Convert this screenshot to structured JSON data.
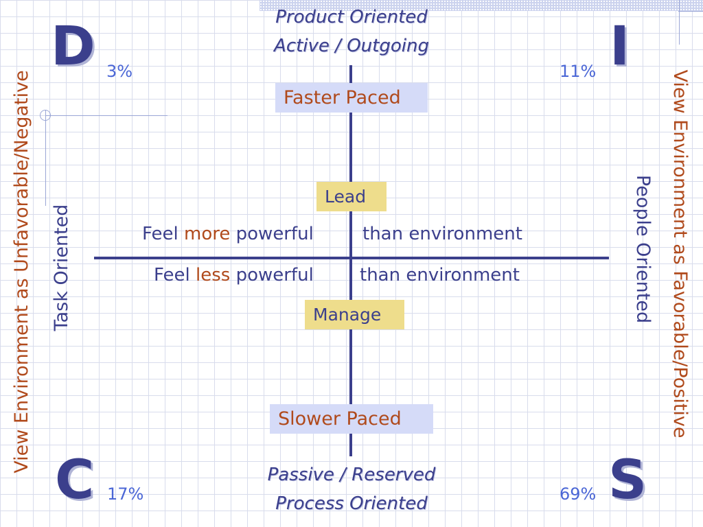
{
  "headings": {
    "top_line1": "Product Oriented",
    "top_line2": "Active / Outgoing",
    "bottom_line1": "Passive / Reserved",
    "bottom_line2": "Process Oriented"
  },
  "quadrants": {
    "D": {
      "letter": "D",
      "percent": "3%"
    },
    "I": {
      "letter": "I",
      "percent": "11%"
    },
    "C": {
      "letter": "C",
      "percent": "17%"
    },
    "S": {
      "letter": "S",
      "percent": "69%"
    }
  },
  "boxes": {
    "faster": "Faster Paced",
    "slower": "Slower Paced",
    "lead": "Lead",
    "manage": "Manage"
  },
  "statements": {
    "upper": {
      "prefix": "Feel ",
      "highlight": "more",
      "middle": " powerful",
      "right": "than environment"
    },
    "lower": {
      "prefix": "Feel ",
      "highlight": "less",
      "middle": " powerful",
      "right": "than environment"
    }
  },
  "side_labels": {
    "left_outer": "View Environment as Unfavorable/Negative",
    "left_inner": "Task Oriented",
    "right_inner": "People Oriented",
    "right_outer": "View Environment as Favorable/Positive"
  },
  "colors": {
    "primary": "#3b3f8c",
    "accent": "#b04a1c",
    "percent": "#4a66d6",
    "box_blue": "#d5dbf8",
    "box_yellow": "#eedd8c"
  }
}
